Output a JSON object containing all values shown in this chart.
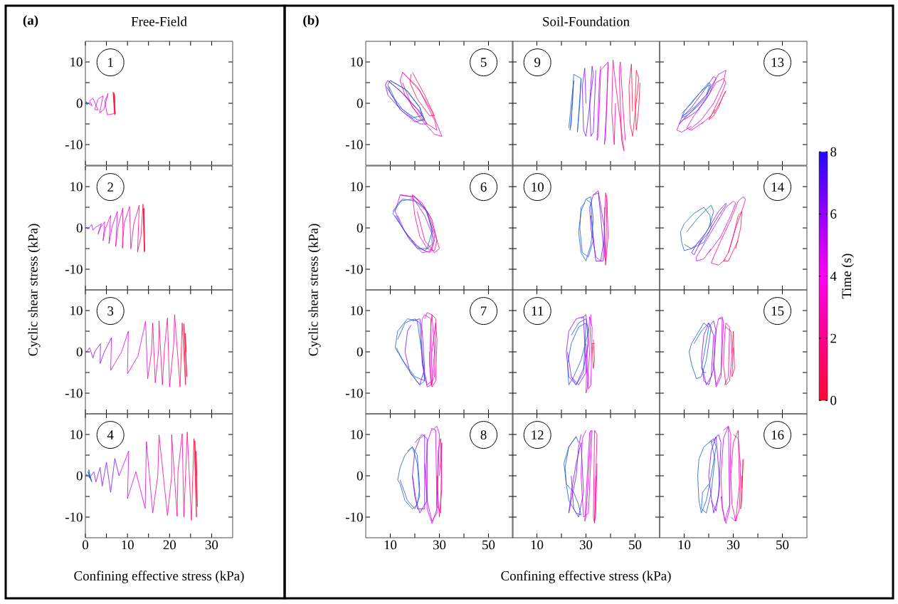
{
  "chart_data": [
    {
      "type": "line",
      "title": "Free-Field",
      "annotations": [
        "(a)",
        "1"
      ],
      "xlim": [
        0,
        35
      ],
      "ylim": [
        -15,
        15
      ],
      "tick_labels": "y",
      "xticks": [
        0,
        10,
        20,
        30
      ],
      "yticks": [
        -10,
        0,
        10
      ],
      "series": [
        {
          "color": "#ff1040",
          "x": [
            7,
            6.9,
            7.1,
            6.8,
            7.0,
            6.6,
            6.9
          ],
          "values": [
            0,
            2.2,
            -2.6,
            2.5,
            -2.8,
            2.7,
            -2.5
          ]
        },
        {
          "color": "#e600e6",
          "x": [
            6.9,
            5.2,
            4.6,
            5.4,
            4.4,
            3.4,
            4.2,
            3.0,
            2.2,
            3.0,
            1.8,
            1.0,
            1.6,
            0.6
          ],
          "values": [
            -2.5,
            -2.8,
            0.5,
            2.4,
            -1.5,
            -2.3,
            1.8,
            1.0,
            -1.5,
            -1.6,
            1.2,
            0.6,
            -0.6,
            0
          ]
        },
        {
          "color": "#1e5cd0",
          "x": [
            0.6,
            0.2,
            0.5,
            0.1,
            0.3,
            0
          ],
          "values": [
            0,
            0.4,
            -0.3,
            0.2,
            -0.2,
            0
          ]
        }
      ]
    },
    {
      "type": "line",
      "ylabel": "Cyclic shear stress (kPa)",
      "annotations": [
        "2"
      ],
      "xlim": [
        0,
        35
      ],
      "ylim": [
        -15,
        15
      ],
      "tick_labels": "y",
      "xticks": [
        0,
        10,
        20,
        30
      ],
      "yticks": [
        -10,
        0,
        10
      ],
      "series": [
        {
          "color": "#ff1040",
          "x": [
            14,
            13.9,
            14.1,
            13.8,
            14.0,
            13.7,
            13.2,
            12.4
          ],
          "values": [
            0,
            4.8,
            -5.6,
            4.6,
            -5.8,
            5.8,
            -2,
            -5.8
          ]
        },
        {
          "color": "#ff0096",
          "x": [
            12.4,
            12.8,
            11.5,
            10.8,
            10.5,
            9.2,
            8.8,
            8.9,
            7.8,
            7.2
          ],
          "values": [
            -5.8,
            5.5,
            1,
            -5.1,
            5.2,
            1,
            -4.9,
            4.8,
            0.5,
            -4.5
          ]
        },
        {
          "color": "#e600e6",
          "x": [
            7.2,
            7.6,
            6.4,
            5.6,
            6.0,
            4.8,
            4.2,
            4.6,
            3.5,
            3.0,
            3.8,
            2.5
          ],
          "values": [
            -4.5,
            4.0,
            0.5,
            -3.8,
            3.0,
            0,
            -3.1,
            1.5,
            0,
            -1.5,
            1.0,
            0.2
          ]
        },
        {
          "color": "#8010ff",
          "x": [
            2.5,
            1.8,
            1.5,
            1.0,
            0.6,
            0.3,
            0.2
          ],
          "values": [
            0.2,
            -0.5,
            0.8,
            0.2,
            -0.3,
            0.2,
            0
          ]
        }
      ]
    },
    {
      "type": "line",
      "annotations": [
        "3"
      ],
      "xlim": [
        0,
        35
      ],
      "ylim": [
        -15,
        15
      ],
      "tick_labels": "y",
      "xticks": [
        0,
        10,
        20,
        30
      ],
      "yticks": [
        -10,
        0,
        10
      ],
      "series": [
        {
          "color": "#ff1040",
          "x": [
            24,
            23.7,
            24.1,
            23.4,
            23.8,
            23,
            22.5
          ],
          "values": [
            0,
            4.5,
            -6,
            6.8,
            -8,
            7,
            -8.5
          ]
        },
        {
          "color": "#ff0096",
          "x": [
            22.5,
            21.2,
            21.0,
            20.0,
            19.5,
            18.8,
            18.3,
            17.5,
            17.4,
            16.6,
            16.0,
            15.7,
            14.8
          ],
          "values": [
            -8.5,
            9,
            2,
            -8.5,
            8.2,
            1,
            -8,
            7.5,
            0.5,
            -7.5,
            7,
            0,
            -6.5
          ]
        },
        {
          "color": "#dd00f0",
          "x": [
            14.8,
            14.3,
            12.5,
            10.0,
            10.2,
            8.6,
            6.0,
            6.2
          ],
          "values": [
            -6.5,
            7.4,
            -1,
            -5.3,
            5,
            0,
            -4.5,
            3.4
          ]
        },
        {
          "color": "#8010ff",
          "x": [
            6.2,
            4.5,
            3.5,
            3.6,
            2.2,
            1.8,
            1.0,
            0.4,
            0
          ],
          "values": [
            3.4,
            0,
            -2.8,
            2.0,
            0,
            -1.5,
            1,
            0.2,
            0
          ]
        }
      ]
    },
    {
      "type": "line",
      "xlabel": "Confining effective stress (kPa)",
      "annotations": [
        "4"
      ],
      "xlim": [
        0,
        35
      ],
      "ylim": [
        -15,
        15
      ],
      "xticks": [
        0,
        10,
        20,
        30
      ],
      "yticks": [
        -10,
        0,
        10
      ],
      "series": [
        {
          "color": "#ff1040",
          "x": [
            26.5,
            26.3,
            26.6,
            26.0,
            26.4,
            25.8,
            25.2
          ],
          "values": [
            0,
            6,
            -7.5,
            8.5,
            -10,
            9,
            -10.8
          ]
        },
        {
          "color": "#ff0096",
          "x": [
            25.2,
            24.2,
            23.4,
            23.0,
            22.0,
            21.8,
            20.5,
            20.5,
            19.5,
            17.5,
            17.2,
            16.0
          ],
          "values": [
            -10.8,
            10.6,
            -10,
            10.2,
            1,
            -9.8,
            10,
            0,
            -9.6,
            9.9,
            0,
            -9
          ]
        },
        {
          "color": "#dd00f0",
          "x": [
            16.0,
            14.5,
            14.2,
            12.0,
            10.0,
            10.3,
            8.0
          ],
          "values": [
            -9,
            8.3,
            -7.9,
            1,
            -5.5,
            6,
            0
          ]
        },
        {
          "color": "#8010ff",
          "x": [
            8.0,
            7.0,
            6.0,
            5.0,
            4.0,
            3.5,
            2.5,
            2.0,
            1.0
          ],
          "values": [
            0,
            4.2,
            -4,
            3.3,
            -2.5,
            2.0,
            -1.5,
            1.0,
            -0.5
          ]
        },
        {
          "color": "#1e5cd0",
          "x": [
            1.0,
            0.8,
            1.5,
            0.6,
            1.4,
            0.3,
            0.2
          ],
          "values": [
            -0.5,
            1.5,
            -1.5,
            1.0,
            -1.0,
            0.4,
            -0.2
          ]
        }
      ]
    },
    {
      "type": "line",
      "annotations": [
        "(b)",
        "5"
      ],
      "xlim": [
        0,
        60
      ],
      "ylim": [
        -15,
        15
      ],
      "tick_labels": "y",
      "xticks": [
        10,
        30,
        50
      ],
      "yticks": [
        -10,
        0,
        10
      ],
      "series": [
        {
          "color": "#ff1040",
          "x": [
            19,
            24,
            28,
            26,
            21,
            18,
            18.5
          ],
          "values": [
            7.5,
            2,
            -3,
            -3,
            1,
            5,
            7
          ]
        },
        {
          "color": "#ff0096",
          "x": [
            15,
            21,
            27,
            31,
            28,
            22,
            16,
            14,
            15,
            22,
            28,
            29,
            25,
            19,
            15
          ],
          "values": [
            7.5,
            4,
            -2,
            -8,
            -7.5,
            -3.5,
            2,
            5.5,
            7.5,
            3,
            -4,
            -6.5,
            -5,
            -1,
            5
          ]
        },
        {
          "color": "#8010ff",
          "x": [
            9,
            15,
            22,
            25,
            22,
            15,
            9,
            8,
            9,
            14,
            21,
            24,
            20,
            14,
            8.5
          ],
          "values": [
            5.5,
            2.5,
            -2,
            -5,
            -5,
            -2,
            2,
            4.5,
            5.5,
            3,
            -1.5,
            -4,
            -4.5,
            -1.5,
            4
          ]
        },
        {
          "color": "#1e5cd0",
          "x": [
            10,
            17,
            22,
            24,
            21,
            15,
            10,
            9,
            10,
            16,
            22,
            23,
            19,
            13,
            9.5
          ],
          "values": [
            5.5,
            3,
            -1,
            -4,
            -4,
            -1.5,
            2.5,
            4.5,
            5.5,
            3.5,
            -1,
            -3,
            -3.5,
            -0.5,
            4
          ]
        }
      ]
    },
    {
      "type": "line",
      "ylabel": "Cyclic shear stress (kPa)",
      "annotations": [
        "6"
      ],
      "xlim": [
        0,
        60
      ],
      "ylim": [
        -15,
        15
      ],
      "tick_labels": "y",
      "xticks": [
        10,
        30,
        50
      ],
      "yticks": [
        -10,
        0,
        10
      ],
      "series": [
        {
          "color": "#ff0096",
          "x": [
            19,
            23,
            27,
            29,
            28,
            25,
            22,
            20,
            19,
            21,
            26,
            30,
            28,
            24,
            21
          ],
          "values": [
            8,
            6,
            2,
            -3,
            -5.5,
            -5,
            -2,
            3,
            8,
            7,
            3,
            -5,
            -6,
            -3,
            4
          ]
        },
        {
          "color": "#dd00f0",
          "x": [
            14,
            20,
            25,
            28,
            27,
            23,
            18,
            14,
            12,
            14,
            19,
            24,
            28,
            26,
            22,
            16,
            13
          ],
          "values": [
            8,
            7.5,
            4,
            -2,
            -5.5,
            -6,
            -3,
            1,
            4,
            8,
            7.5,
            3,
            -3,
            -6,
            -5,
            -1,
            3
          ]
        },
        {
          "color": "#1e5cd0",
          "x": [
            11,
            14,
            19,
            24,
            27,
            27,
            24,
            20,
            15,
            11,
            12,
            15,
            20,
            25,
            27,
            25,
            21,
            16,
            12
          ],
          "values": [
            4,
            6.5,
            7,
            5,
            0,
            -4,
            -5.5,
            -4,
            0,
            3.5,
            4.5,
            7,
            6.5,
            4,
            -1,
            -5,
            -5,
            -1,
            3
          ]
        }
      ]
    },
    {
      "type": "line",
      "annotations": [
        "7"
      ],
      "xlim": [
        0,
        60
      ],
      "ylim": [
        -15,
        15
      ],
      "tick_labels": "y",
      "xticks": [
        10,
        30,
        50
      ],
      "yticks": [
        -10,
        0,
        10
      ],
      "series": [
        {
          "color": "#ff0096",
          "x": [
            27,
            28.5,
            29,
            28.5,
            27,
            26,
            26.5,
            27,
            28.5,
            28,
            26.5,
            26
          ],
          "values": [
            0,
            7,
            3,
            -7,
            -8.5,
            -3,
            6,
            9,
            8,
            -6,
            -8,
            0
          ]
        },
        {
          "color": "#dd00f0",
          "x": [
            24,
            25,
            27,
            28,
            27,
            25,
            23,
            22.5,
            23,
            24,
            26.5,
            27,
            25,
            23
          ],
          "values": [
            8,
            9.5,
            9,
            0,
            -8,
            -8.5,
            -3,
            3,
            8,
            9,
            8,
            -7,
            -8,
            -2
          ]
        },
        {
          "color": "#8010ff",
          "x": [
            19,
            22,
            23,
            24,
            22,
            18,
            16,
            17,
            18.5
          ],
          "values": [
            7.5,
            8,
            5,
            -4,
            -8,
            -5,
            0,
            5,
            6.5
          ]
        },
        {
          "color": "#1e5cd0",
          "x": [
            13,
            16,
            20,
            22,
            23,
            24,
            22,
            17,
            13,
            12,
            13,
            17,
            21,
            23,
            24,
            20,
            15,
            12.5
          ],
          "values": [
            3,
            7,
            8,
            7,
            0,
            -7,
            -8,
            -4,
            0,
            1,
            5,
            8,
            7.5,
            -1,
            -7,
            -6,
            -2,
            1
          ]
        }
      ]
    },
    {
      "type": "line",
      "annotations": [
        "8"
      ],
      "xlim": [
        0,
        60
      ],
      "ylim": [
        -15,
        15
      ],
      "xticks": [
        10,
        30,
        50
      ],
      "yticks": [
        -10,
        0,
        10
      ],
      "series": [
        {
          "color": "#ff0096",
          "x": [
            30,
            31,
            30.5,
            29,
            29.5,
            30.5,
            31,
            30,
            29
          ],
          "values": [
            0,
            8,
            -9,
            -7,
            6,
            9,
            -3,
            -10,
            0
          ]
        },
        {
          "color": "#dd00f0",
          "x": [
            27,
            29,
            30,
            29,
            27,
            25,
            24.5,
            25,
            27,
            28.5,
            29,
            27,
            25,
            24
          ],
          "values": [
            11,
            12,
            10,
            -8,
            -11.5,
            -8,
            0,
            8,
            11.5,
            11,
            -9,
            -11,
            -6,
            3
          ]
        },
        {
          "color": "#8010ff",
          "x": [
            20,
            23,
            25,
            25,
            22,
            20,
            19,
            20,
            22,
            24,
            24,
            21,
            19
          ],
          "values": [
            8,
            10,
            9,
            -6,
            -9,
            -5,
            0,
            6,
            9,
            10,
            -8,
            -8,
            0
          ]
        },
        {
          "color": "#1e5cd0",
          "x": [
            17,
            19,
            21,
            22,
            21,
            19,
            16,
            14,
            13,
            14,
            16,
            19,
            21,
            22,
            20,
            17,
            14
          ],
          "values": [
            6,
            7,
            5,
            -3,
            -7,
            -8,
            -6,
            -2,
            -1,
            2,
            5,
            7,
            3,
            -5,
            -8,
            -6,
            -1
          ]
        }
      ]
    },
    {
      "type": "line",
      "title": "Soil-Foundation",
      "annotations": [
        "9"
      ],
      "xlim": [
        0,
        60
      ],
      "ylim": [
        -15,
        15
      ],
      "tick_labels": false,
      "xticks": [
        10,
        30,
        50
      ],
      "yticks": [
        -10,
        0,
        10
      ],
      "series": [
        {
          "color": "#ff1040",
          "x": [
            52,
            51.5,
            50.5,
            50,
            50.5,
            51.5,
            49,
            48,
            47.5,
            48.5,
            49
          ],
          "values": [
            5,
            -1,
            -6.5,
            0,
            8,
            6,
            -8,
            -5,
            4,
            9.5,
            -2
          ]
        },
        {
          "color": "#ff0096",
          "x": [
            46,
            45,
            44,
            43.5,
            44.5,
            45.5,
            42,
            41,
            40.5,
            41.5,
            42
          ],
          "values": [
            -9,
            0,
            10,
            8,
            -9,
            -11.5,
            5,
            10.5,
            -2,
            -10,
            0
          ]
        },
        {
          "color": "#dd00f0",
          "x": [
            39,
            38,
            37.5,
            38.5,
            39,
            36,
            35,
            34.5,
            35.5,
            36
          ],
          "values": [
            9.5,
            -8,
            -10,
            0,
            10,
            8,
            -8,
            -9,
            6,
            9
          ]
        },
        {
          "color": "#8010ff",
          "x": [
            34,
            33,
            32,
            31.5,
            32.5,
            33,
            30,
            29,
            28.5,
            29.5,
            30
          ],
          "values": [
            8,
            -7,
            -8,
            0,
            9,
            7,
            -8,
            -6.5,
            4,
            8.5,
            0
          ]
        },
        {
          "color": "#1e5cd0",
          "x": [
            28,
            27,
            26.5,
            27.5,
            28,
            25,
            24,
            23.5,
            24.5,
            25,
            24,
            23
          ],
          "values": [
            6,
            -3,
            -7,
            0,
            6,
            7,
            -5,
            -6.5,
            0,
            5.5,
            0,
            -6
          ]
        }
      ]
    },
    {
      "type": "line",
      "annotations": [
        "10"
      ],
      "xlim": [
        0,
        60
      ],
      "ylim": [
        -15,
        15
      ],
      "tick_labels": false,
      "xticks": [
        10,
        30,
        50
      ],
      "yticks": [
        -10,
        0,
        10
      ],
      "series": [
        {
          "color": "#ff0096",
          "x": [
            38.5,
            39,
            38,
            37.5,
            38,
            38.5,
            38,
            37.5,
            37.5
          ],
          "values": [
            8,
            -2,
            -9,
            0,
            8.5,
            6,
            -8,
            -7,
            5
          ]
        },
        {
          "color": "#8010ff",
          "x": [
            33,
            35,
            36,
            37,
            36,
            34,
            32,
            31.5,
            33,
            35,
            37.5,
            37,
            34,
            32
          ],
          "values": [
            8,
            8.5,
            3,
            -4,
            -8,
            -7,
            0,
            5,
            8,
            9,
            0,
            -8,
            -8,
            3
          ]
        },
        {
          "color": "#1e5cd0",
          "x": [
            30,
            32,
            33,
            32,
            30,
            28,
            27,
            28,
            30,
            32,
            33,
            31,
            28.5,
            27.5,
            28,
            29.5
          ],
          "values": [
            7,
            7.5,
            2,
            -4,
            -8,
            -6,
            -1,
            4,
            7,
            6,
            -3,
            -7,
            -6,
            0,
            5,
            6
          ]
        }
      ]
    },
    {
      "type": "line",
      "annotations": [
        "11"
      ],
      "xlim": [
        0,
        60
      ],
      "ylim": [
        -15,
        15
      ],
      "tick_labels": false,
      "xticks": [
        10,
        30,
        50
      ],
      "yticks": [
        -10,
        0,
        10
      ],
      "series": [
        {
          "color": "#ff1040",
          "x": [
            33,
            33.5,
            33,
            32.5,
            33.5
          ],
          "values": [
            3,
            -2,
            -4,
            2,
            2
          ]
        },
        {
          "color": "#dd00f0",
          "x": [
            32,
            31.5,
            30.5,
            30,
            30.5,
            31.5,
            32.5,
            32,
            31,
            30
          ],
          "values": [
            9,
            0,
            -9,
            -10,
            0,
            8.5,
            6,
            -8,
            -9,
            2
          ]
        },
        {
          "color": "#8010ff",
          "x": [
            28,
            30,
            31,
            29,
            26,
            23,
            22,
            23,
            26,
            29,
            30,
            27,
            24,
            22.5
          ],
          "values": [
            8,
            9,
            2,
            -4,
            -8,
            -6,
            0,
            5,
            8,
            8.5,
            -5,
            -8,
            -6,
            0
          ]
        },
        {
          "color": "#1e5cd0",
          "x": [
            24,
            27,
            30,
            31,
            28,
            25,
            23,
            22.5,
            24,
            27,
            30,
            29,
            26,
            24
          ],
          "values": [
            4,
            7,
            8,
            5,
            -2,
            -6,
            -8,
            -3,
            2,
            6,
            7,
            -5,
            -8,
            -6
          ]
        }
      ]
    },
    {
      "type": "line",
      "xlabel": "Confining effective stress (kPa)",
      "annotations": [
        "12"
      ],
      "xlim": [
        0,
        60
      ],
      "ylim": [
        -15,
        15
      ],
      "tick_labels": "x",
      "xticks": [
        10,
        30,
        50
      ],
      "yticks": [
        -10,
        0,
        10
      ],
      "series": [
        {
          "color": "#ff0096",
          "x": [
            34.5,
            34,
            33.5,
            34,
            34.5,
            33.5,
            33,
            33.5,
            34
          ],
          "values": [
            3,
            -9,
            -11,
            0,
            10,
            11,
            -10,
            -11.5,
            0
          ]
        },
        {
          "color": "#dd00f0",
          "x": [
            32,
            31,
            30,
            29.5,
            30.5,
            31.5,
            32.5,
            31,
            29,
            28,
            28.5,
            30
          ],
          "values": [
            11,
            0,
            -10,
            -11,
            0,
            10.5,
            11,
            -9,
            -10,
            0,
            9,
            11
          ]
        },
        {
          "color": "#8010ff",
          "x": [
            28,
            27,
            26,
            24,
            23,
            24,
            26,
            28,
            29,
            27,
            25,
            24
          ],
          "values": [
            10,
            7,
            0,
            -6,
            -9,
            -4,
            3,
            8,
            -4,
            -10,
            -8,
            0
          ]
        },
        {
          "color": "#1e5cd0",
          "x": [
            26,
            23,
            21,
            22,
            25,
            27,
            28,
            26,
            23,
            22,
            21.5,
            23,
            26,
            27
          ],
          "values": [
            9.5,
            7,
            3,
            -2,
            -4,
            -7,
            -9.5,
            -9,
            -6,
            -2,
            2,
            7,
            9.5,
            8
          ]
        }
      ]
    },
    {
      "type": "line",
      "annotations": [
        "13"
      ],
      "xlim": [
        0,
        60
      ],
      "ylim": [
        -15,
        15
      ],
      "tick_labels": false,
      "clabel": "Time (s)",
      "clim": [
        0,
        8
      ],
      "cticks": [
        0,
        2,
        4,
        6,
        8
      ],
      "xticks": [
        10,
        30,
        50
      ],
      "yticks": [
        -10,
        0,
        10
      ],
      "series": [
        {
          "color": "#ff1040",
          "x": [
            22,
            24,
            27,
            26,
            24,
            22,
            20,
            22.5
          ],
          "values": [
            -2.5,
            -0.5,
            3,
            2,
            -1,
            -3,
            -4,
            -1.5
          ]
        },
        {
          "color": "#ff0096",
          "x": [
            17,
            21,
            25,
            27,
            26,
            23,
            19,
            14,
            11,
            13,
            18
          ],
          "values": [
            -5,
            -3,
            2,
            5,
            6,
            5,
            1,
            -3,
            -6,
            -6.5,
            -4.5
          ]
        },
        {
          "color": "#dd00f0",
          "x": [
            12,
            17,
            22,
            26,
            27,
            24,
            19,
            13,
            8,
            7,
            9,
            13
          ],
          "values": [
            -6.5,
            -4,
            0,
            5,
            8,
            7,
            2,
            -2,
            -5,
            -6.5,
            -7,
            -5.5
          ]
        },
        {
          "color": "#8010ff",
          "x": [
            10,
            15,
            20,
            23,
            22,
            18,
            13,
            9,
            8,
            11
          ],
          "values": [
            -4,
            -2,
            2,
            6,
            6.5,
            3,
            -1,
            -3.5,
            -5,
            -3
          ]
        },
        {
          "color": "#1e5cd0",
          "x": [
            9,
            13,
            17,
            20,
            21,
            19,
            15,
            11,
            9,
            10,
            14,
            18,
            20.5,
            19,
            15,
            11,
            9
          ],
          "values": [
            -2.5,
            0,
            3,
            5,
            4.5,
            1.5,
            -1,
            -3,
            -3.5,
            -2,
            1,
            3.5,
            4.5,
            2,
            -0.5,
            -2.5,
            -3
          ]
        }
      ]
    },
    {
      "type": "line",
      "annotations": [
        "14"
      ],
      "xlim": [
        0,
        60
      ],
      "ylim": [
        -15,
        15
      ],
      "tick_labels": false,
      "xticks": [
        10,
        30,
        50
      ],
      "yticks": [
        -10,
        0,
        10
      ],
      "series": [
        {
          "color": "#ff1040",
          "x": [
            31,
            33,
            33.5,
            32,
            30,
            28,
            26,
            28,
            32
          ],
          "values": [
            -5,
            0,
            4,
            3,
            -2,
            -6,
            -8,
            -8,
            -3
          ]
        },
        {
          "color": "#ff0096",
          "x": [
            28,
            31,
            34,
            35,
            34,
            32,
            29,
            25,
            22,
            21,
            24,
            27
          ],
          "values": [
            -6,
            0,
            5,
            7,
            7.5,
            6.5,
            2,
            -3,
            -7,
            -8.5,
            -9,
            -7.5
          ]
        },
        {
          "color": "#dd00f0",
          "x": [
            20,
            25,
            29,
            31,
            30,
            27,
            22,
            18,
            15,
            15,
            18,
            21
          ],
          "values": [
            -6,
            -2,
            3,
            6,
            6.5,
            5,
            0,
            -4,
            -7,
            -8,
            -7.5,
            -5
          ]
        },
        {
          "color": "#8010ff",
          "x": [
            16,
            20,
            24,
            27,
            27,
            24,
            19,
            15,
            13,
            14,
            17
          ],
          "values": [
            -4,
            -1,
            3,
            5.5,
            6,
            4,
            -1,
            -4,
            -6,
            -6.5,
            -3
          ]
        },
        {
          "color": "#1e5cd0",
          "x": [
            11,
            15,
            19,
            21,
            22,
            20,
            17,
            13,
            10,
            9,
            8.5,
            10,
            14,
            18,
            20.5,
            21,
            18,
            13,
            10
          ],
          "values": [
            -1,
            2,
            4.5,
            5.5,
            4,
            0,
            -3,
            -5,
            -5.5,
            -3.5,
            -1,
            1,
            3.5,
            5,
            3,
            0,
            -3.5,
            -5,
            -4
          ]
        }
      ]
    },
    {
      "type": "line",
      "annotations": [
        "15"
      ],
      "xlim": [
        0,
        60
      ],
      "ylim": [
        -15,
        15
      ],
      "tick_labels": false,
      "xticks": [
        10,
        30,
        50
      ],
      "yticks": [
        -10,
        0,
        10
      ],
      "series": [
        {
          "color": "#ff1040",
          "x": [
            29.5,
            30,
            30.5,
            29.5,
            30
          ],
          "values": [
            0,
            5,
            -4,
            -6,
            1
          ]
        },
        {
          "color": "#ff0096",
          "x": [
            27,
            29,
            29.5,
            28.5,
            27,
            26,
            26.5,
            27,
            28.5,
            28,
            26.5
          ],
          "values": [
            6,
            5,
            -1,
            -7,
            -8,
            -3,
            4,
            7,
            6,
            -6,
            -8
          ]
        },
        {
          "color": "#dd00f0",
          "x": [
            24,
            25.5,
            26,
            25,
            23,
            22,
            22.5,
            24,
            25.5,
            25,
            23,
            22
          ],
          "values": [
            8,
            8.5,
            7,
            -6,
            -8.5,
            -3,
            4,
            8,
            8,
            -5,
            -8,
            -3
          ]
        },
        {
          "color": "#8010ff",
          "x": [
            20,
            22,
            23,
            22,
            20,
            18,
            17,
            18,
            20,
            22,
            21,
            19,
            17.5
          ],
          "values": [
            6,
            7.5,
            5,
            -4,
            -8,
            -7,
            -2,
            4,
            7,
            4,
            -6,
            -8,
            -4
          ]
        },
        {
          "color": "#1e5cd0",
          "x": [
            14,
            17,
            20,
            21,
            19,
            17,
            15,
            13,
            12,
            13,
            15,
            18,
            20,
            18,
            17,
            18,
            19
          ],
          "values": [
            2,
            5,
            7,
            6,
            -2,
            -6,
            -6.5,
            -3,
            0,
            2,
            4,
            7,
            6,
            -1,
            -4,
            -5,
            -5
          ]
        }
      ]
    },
    {
      "type": "line",
      "annotations": [
        "16"
      ],
      "xlim": [
        0,
        60
      ],
      "ylim": [
        -15,
        15
      ],
      "tick_labels": "x",
      "xticks": [
        10,
        30,
        50
      ],
      "yticks": [
        -10,
        0,
        10
      ],
      "series": [
        {
          "color": "#ff1040",
          "x": [
            33.5,
            34,
            33.5,
            33,
            33.5
          ],
          "values": [
            -3,
            4,
            -6,
            -8,
            0
          ]
        },
        {
          "color": "#ff0096",
          "x": [
            30,
            32,
            33,
            32.5,
            31,
            29.5,
            29,
            30,
            32,
            32.5,
            31,
            29
          ],
          "values": [
            10,
            9,
            2,
            -8,
            -11,
            -7,
            0,
            8,
            11,
            -2,
            -11,
            -10
          ]
        },
        {
          "color": "#dd00f0",
          "x": [
            26,
            28,
            29,
            28.5,
            27,
            25.5,
            25,
            26,
            28,
            28.5,
            26.5,
            25
          ],
          "values": [
            11,
            12,
            10,
            -8,
            -11.5,
            -8,
            0,
            9,
            12,
            -7,
            -11,
            -5
          ]
        },
        {
          "color": "#8010ff",
          "x": [
            21,
            24,
            25,
            24,
            22,
            21,
            20,
            21,
            23,
            24.5,
            23,
            21
          ],
          "values": [
            8,
            10,
            8,
            -5,
            -9,
            -5,
            0,
            6,
            9.5,
            -2,
            -8.5,
            -6
          ]
        },
        {
          "color": "#1e5cd0",
          "x": [
            20,
            22,
            23,
            21,
            19,
            17,
            16,
            15.5,
            16,
            18,
            21,
            22.5,
            21,
            19,
            17,
            17.5,
            20
          ],
          "values": [
            8,
            9,
            7,
            0,
            -6,
            -9,
            -6,
            0,
            4,
            7,
            8.5,
            4,
            -4,
            -9,
            -8,
            -4,
            -2
          ]
        }
      ]
    }
  ]
}
